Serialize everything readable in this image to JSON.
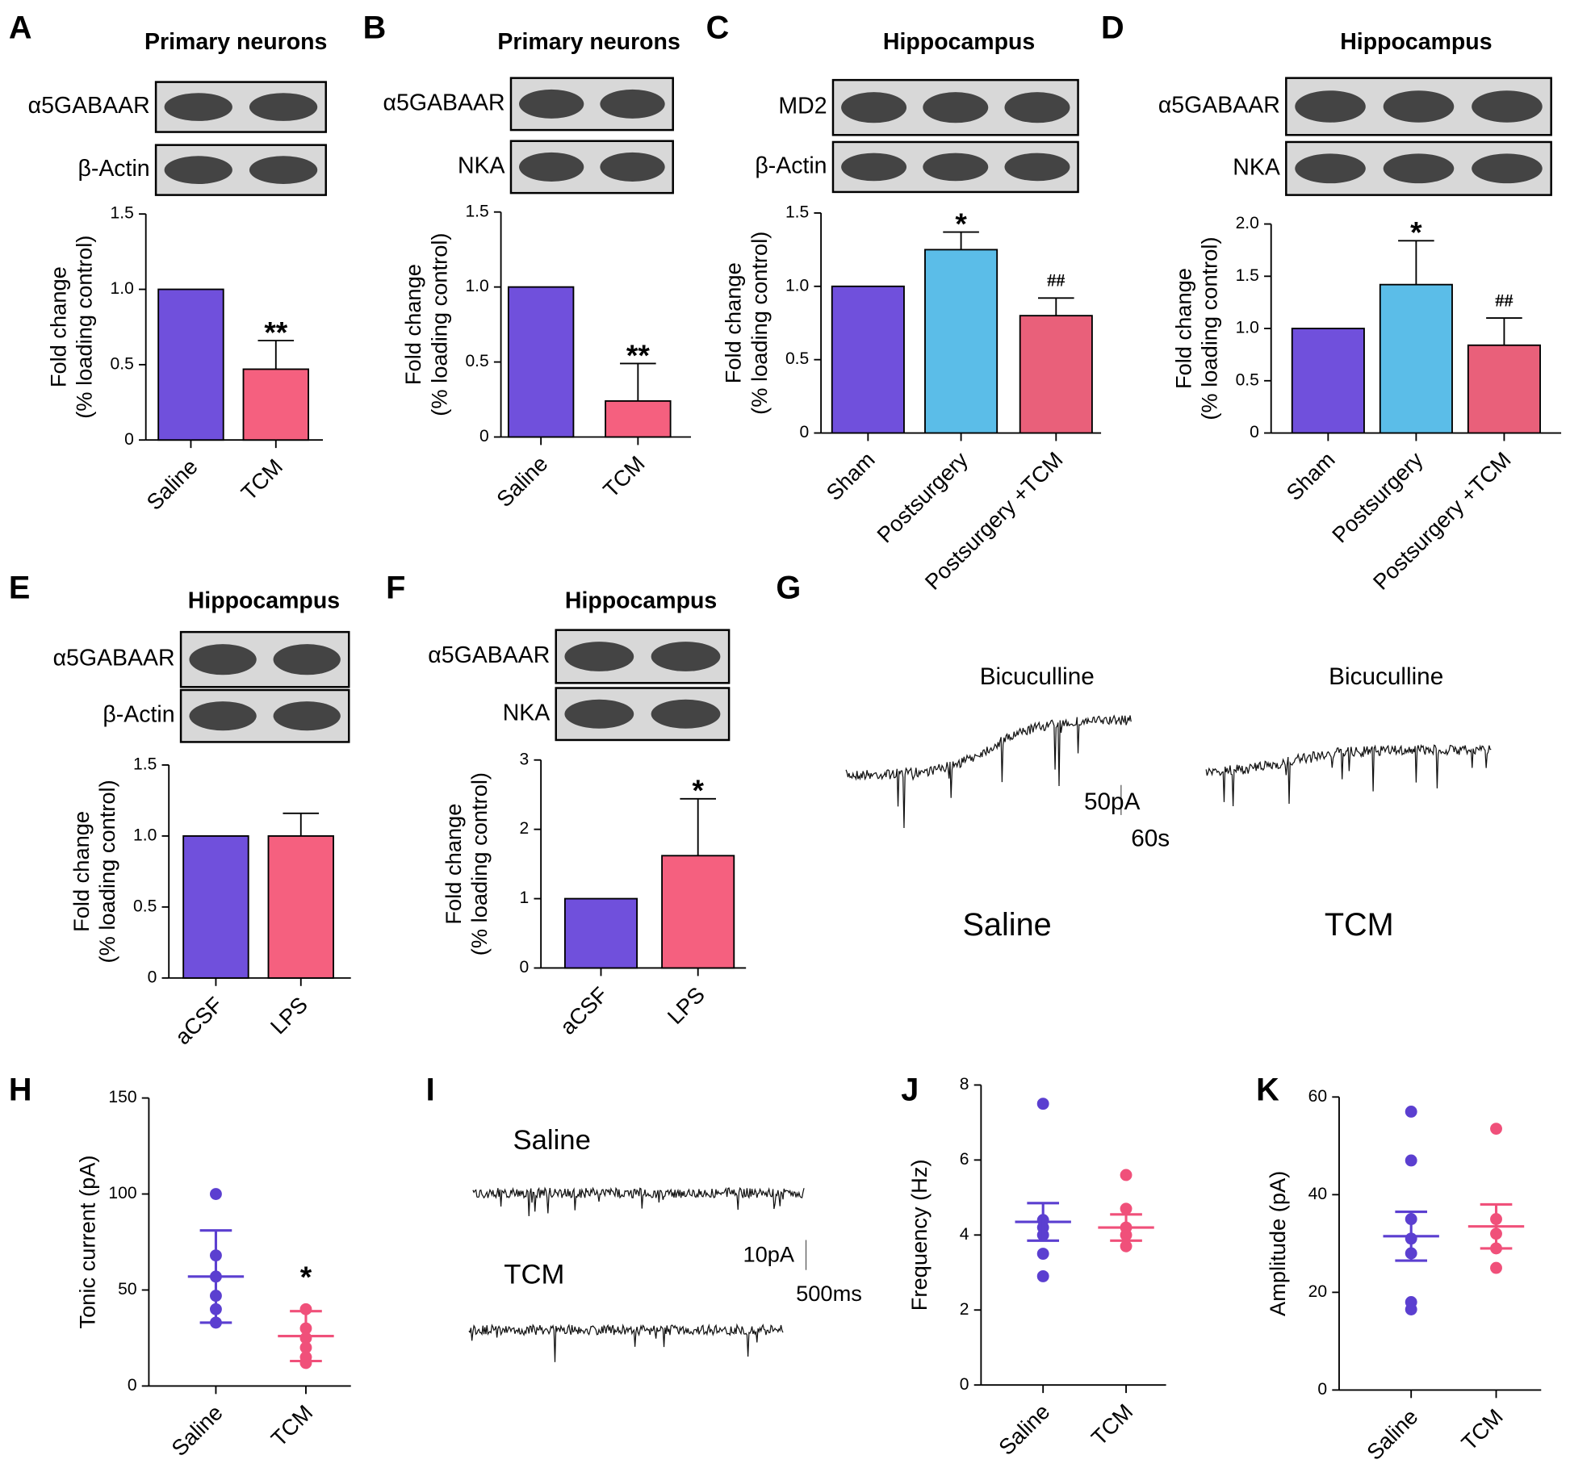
{
  "chart_data": [
    {
      "type": "bar",
      "panel": "A",
      "title": "Primary neurons",
      "blots": [
        "α5GABAAR",
        "β-Actin"
      ],
      "ylabel": [
        "Fold change",
        "(% loading control)"
      ],
      "categories": [
        "Saline",
        "TCM"
      ],
      "values": [
        1.0,
        0.47
      ],
      "errors": [
        null,
        0.19
      ],
      "colors": [
        "#7050dc",
        "#f5607f"
      ],
      "annotations": [
        null,
        "**"
      ],
      "ylim": [
        0,
        1.5
      ],
      "yticks": [
        0,
        0.5,
        {
          "value": 1,
          "label": "1.0"
        },
        1.5
      ]
    },
    {
      "type": "bar",
      "panel": "B",
      "title": "Primary neurons",
      "blots": [
        "α5GABAAR",
        "NKA"
      ],
      "ylabel": [
        "Fold change",
        "(% loading control)"
      ],
      "categories": [
        "Saline",
        "TCM"
      ],
      "values": [
        1.0,
        0.24
      ],
      "errors": [
        null,
        0.25
      ],
      "colors": [
        "#7050dc",
        "#f5607f"
      ],
      "annotations": [
        null,
        "**"
      ],
      "ylim": [
        0,
        1.5
      ],
      "yticks": [
        0,
        0.5,
        {
          "value": 1,
          "label": "1.0"
        },
        1.5
      ]
    },
    {
      "type": "bar",
      "panel": "C",
      "title": "Hippocampus",
      "blots": [
        "MD2",
        "β-Actin"
      ],
      "ylabel": [
        "Fold change",
        "(% loading control)"
      ],
      "categories": [
        "Sham",
        "Postsurgery",
        "Postsurgery +TCM"
      ],
      "values": [
        1.0,
        1.25,
        0.8
      ],
      "errors": [
        null,
        0.12,
        0.12
      ],
      "colors": [
        "#7050dc",
        "#5bbde8",
        "#e9607a"
      ],
      "annotations": [
        null,
        "*",
        "##"
      ],
      "ylim": [
        0,
        1.5
      ],
      "yticks": [
        0,
        0.5,
        {
          "value": 1,
          "label": "1.0"
        },
        1.5
      ]
    },
    {
      "type": "bar",
      "panel": "D",
      "title": "Hippocampus",
      "blots": [
        "α5GABAAR",
        "NKA"
      ],
      "ylabel": [
        "Fold change",
        "(% loading control)"
      ],
      "categories": [
        "Sham",
        "Postsurgery",
        "Postsurgery +TCM"
      ],
      "values": [
        1.0,
        1.42,
        0.84
      ],
      "errors": [
        null,
        0.42,
        0.26
      ],
      "colors": [
        "#7050dc",
        "#5bbde8",
        "#e9607a"
      ],
      "annotations": [
        null,
        "*",
        "##"
      ],
      "ylim": [
        0,
        2
      ],
      "yticks": [
        0,
        0.5,
        {
          "value": 1,
          "label": "1.0"
        },
        1.5,
        {
          "value": 2,
          "label": "2.0"
        }
      ]
    },
    {
      "type": "bar",
      "panel": "E",
      "title": "Hippocampus",
      "blots": [
        "α5GABAAR",
        "β-Actin"
      ],
      "ylabel": [
        "Fold change",
        "(% loading control)"
      ],
      "categories": [
        "aCSF",
        "LPS"
      ],
      "values": [
        1.0,
        1.0
      ],
      "errors": [
        null,
        0.16
      ],
      "colors": [
        "#7050dc",
        "#f5607f"
      ],
      "annotations": [
        null,
        null
      ],
      "ylim": [
        0,
        1.5
      ],
      "yticks": [
        0,
        0.5,
        {
          "value": 1,
          "label": "1.0"
        },
        1.5
      ]
    },
    {
      "type": "bar",
      "panel": "F",
      "title": "Hippocampus",
      "blots": [
        "α5GABAAR",
        "NKA"
      ],
      "ylabel": [
        "Fold change",
        "(% loading control)"
      ],
      "categories": [
        "aCSF",
        "LPS"
      ],
      "values": [
        1.0,
        1.62
      ],
      "errors": [
        null,
        0.82
      ],
      "colors": [
        "#7050dc",
        "#f5607f"
      ],
      "annotations": [
        null,
        "*"
      ],
      "ylim": [
        0,
        3
      ],
      "yticks": [
        0,
        1,
        2,
        3
      ]
    },
    {
      "type": "trace",
      "panel": "G",
      "labels": [
        "Bicuculline",
        "Bicuculline",
        "50pA",
        "60s",
        "Saline",
        "TCM"
      ]
    },
    {
      "type": "dot",
      "panel": "H",
      "ylabel": [
        "Tonic current (pA)"
      ],
      "categories": [
        "Saline",
        "TCM"
      ],
      "colors": [
        "#5b3fd0",
        "#f0507a"
      ],
      "points": [
        [
          100,
          68,
          57,
          47,
          40,
          33
        ],
        [
          40,
          30,
          25,
          20,
          15,
          12
        ]
      ],
      "means": [
        57,
        26
      ],
      "errors": [
        24,
        13
      ],
      "annotations": [
        null,
        "*"
      ],
      "ylim": [
        0,
        150
      ],
      "yticks": [
        0,
        50,
        100,
        150
      ]
    },
    {
      "type": "trace",
      "panel": "I",
      "labels": [
        "Saline",
        "TCM",
        "10pA",
        "500ms"
      ]
    },
    {
      "type": "dot",
      "panel": "J",
      "ylabel": [
        "Frequency (Hz)"
      ],
      "categories": [
        "Saline",
        "TCM"
      ],
      "colors": [
        "#5b3fd0",
        "#f0507a"
      ],
      "points": [
        [
          7.5,
          4.4,
          4.2,
          4.0,
          3.5,
          2.9
        ],
        [
          5.6,
          4.7,
          4.2,
          4.0,
          3.7
        ]
      ],
      "means": [
        4.35,
        4.2
      ],
      "errors": [
        0.5,
        0.35
      ],
      "annotations": [
        null,
        null
      ],
      "ylim": [
        0,
        8
      ],
      "yticks": [
        0,
        2,
        4,
        6,
        8
      ]
    },
    {
      "type": "dot",
      "panel": "K",
      "ylabel": [
        "Amplitude (pA)"
      ],
      "categories": [
        "Saline",
        "TCM"
      ],
      "colors": [
        "#5b3fd0",
        "#f0507a"
      ],
      "points": [
        [
          57,
          47,
          35,
          31,
          28,
          18,
          16.5
        ],
        [
          53.5,
          35,
          32,
          29,
          25
        ]
      ],
      "means": [
        31.5,
        33.5
      ],
      "errors": [
        5,
        4.5
      ],
      "annotations": [
        null,
        null
      ],
      "ylim": [
        0,
        60
      ],
      "yticks": [
        0,
        20,
        40,
        60
      ]
    }
  ]
}
